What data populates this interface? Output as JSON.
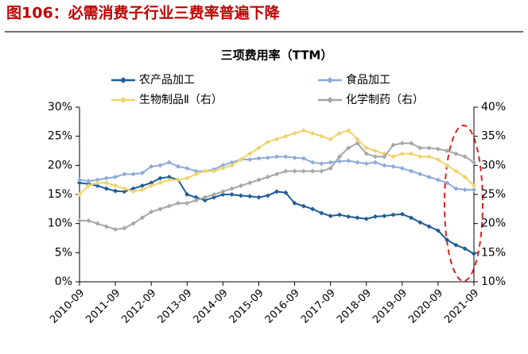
{
  "caption": "图106：必需消费子行业三费率普遍下降",
  "chart_data": {
    "type": "line",
    "title": "三项费用率（TTM）",
    "categories": [
      "2010-09",
      null,
      null,
      null,
      "2011-09",
      null,
      null,
      null,
      "2012-09",
      null,
      null,
      null,
      "2013-09",
      null,
      null,
      null,
      "2014-09",
      null,
      null,
      null,
      "2015-09",
      null,
      null,
      null,
      "2016-09",
      null,
      null,
      null,
      "2017-09",
      null,
      null,
      null,
      "2018-09",
      null,
      null,
      null,
      "2019-09",
      null,
      null,
      null,
      "2020-09",
      null,
      null,
      null,
      "2021-09"
    ],
    "series": [
      {
        "name": "农产品加工",
        "color": "#1f5c99",
        "axis": "y",
        "values": [
          17,
          16.8,
          16.5,
          16,
          15.6,
          15.5,
          16,
          16.5,
          17,
          17.8,
          18,
          17.5,
          15,
          14.5,
          14,
          14.5,
          15,
          15,
          14.8,
          14.7,
          14.5,
          14.8,
          15.5,
          15.3,
          13.5,
          13,
          12.5,
          11.8,
          11.3,
          11.5,
          11.2,
          11,
          10.8,
          11.2,
          11.3,
          11.5,
          11.6,
          11,
          10.2,
          9.5,
          8.8,
          7.2,
          6.3,
          5.7,
          4.8
        ]
      },
      {
        "name": "食品加工",
        "color": "#8eaadb",
        "axis": "y",
        "values": [
          17.5,
          17.3,
          17.5,
          17.8,
          18,
          18.5,
          18.5,
          18.7,
          19.8,
          20,
          20.5,
          19.8,
          19.5,
          19,
          19,
          19.3,
          20,
          20.5,
          21,
          21,
          21.2,
          21.3,
          21.5,
          21.5,
          21.3,
          21.2,
          20.5,
          20.3,
          20.5,
          20.7,
          20.8,
          20.5,
          20.3,
          20.5,
          20,
          19.8,
          19.5,
          19,
          18.5,
          18,
          17.5,
          17,
          16,
          15.8,
          15.8
        ]
      },
      {
        "name": "生物制品Ⅱ（右）",
        "color": "#f0d36a",
        "axis": "y2",
        "values": [
          25,
          26.5,
          27,
          27,
          26.5,
          26,
          25.5,
          25.8,
          26.5,
          27,
          27.5,
          27.5,
          27.8,
          28.5,
          29,
          29,
          29.5,
          30,
          31,
          32,
          33,
          34,
          34.5,
          35,
          35.5,
          36,
          35.5,
          35,
          34.5,
          35.5,
          36,
          34.5,
          33,
          32.5,
          32,
          31.5,
          32,
          32,
          31.5,
          31.5,
          31,
          30,
          29,
          28,
          26.5
        ]
      },
      {
        "name": "化学制药（右）",
        "color": "#a6a6a6",
        "axis": "y2",
        "values": [
          20.5,
          20.5,
          20,
          19.5,
          19,
          19.2,
          20,
          21,
          22,
          22.5,
          23,
          23.5,
          23.5,
          24,
          24.5,
          25,
          25.5,
          26,
          26.5,
          27,
          27.5,
          28,
          28.5,
          29,
          29,
          29,
          29,
          29,
          29.5,
          31.5,
          33,
          33.8,
          32,
          31.5,
          31.5,
          33.5,
          33.8,
          33.8,
          33,
          33,
          32.8,
          32.5,
          32,
          31.5,
          30.5
        ]
      }
    ],
    "ylim": [
      0,
      30
    ],
    "yticks": [
      {
        "value": 0,
        "label": "0%"
      },
      {
        "value": 5,
        "label": "5%"
      },
      {
        "value": 10,
        "label": "10%"
      },
      {
        "value": 15,
        "label": "15%"
      },
      {
        "value": 20,
        "label": "20%"
      },
      {
        "value": 25,
        "label": "25%"
      },
      {
        "value": 30,
        "label": "30%"
      }
    ],
    "y2lim": [
      10,
      40
    ],
    "y2ticks": [
      {
        "value": 10,
        "label": "10%"
      },
      {
        "value": 15,
        "label": "15%"
      },
      {
        "value": 20,
        "label": "20%"
      },
      {
        "value": 25,
        "label": "25%"
      },
      {
        "value": 30,
        "label": "30%"
      },
      {
        "value": 35,
        "label": "35%"
      },
      {
        "value": 40,
        "label": "40%"
      }
    ],
    "legend": "top"
  }
}
